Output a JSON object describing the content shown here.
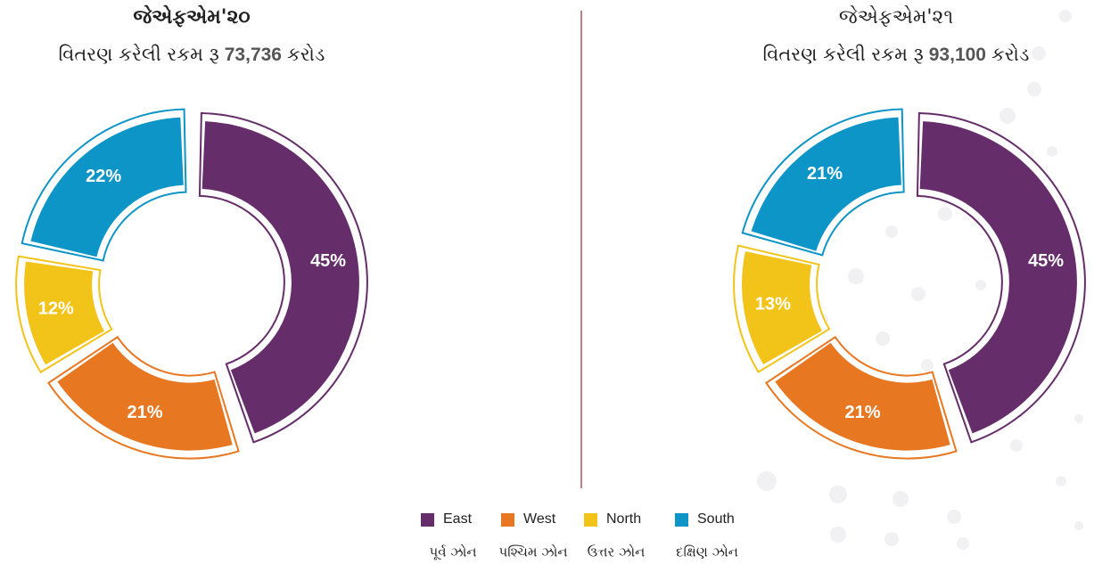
{
  "chart_data": [
    {
      "type": "pie",
      "title": "જેએફએમ'૨૦",
      "subtitle": [
        "વિતરણ કરેલી રકમ રૂ",
        "73,736",
        "કરોડ"
      ],
      "values": [
        45,
        21,
        12,
        22
      ],
      "value_labels": [
        "45%",
        "21%",
        "12%",
        "22%"
      ]
    },
    {
      "type": "pie",
      "title": "જેએફએમ'૨૧",
      "subtitle": [
        "વિતરણ કરેલી રકમ રૂ",
        "93,100",
        "કરોડ"
      ],
      "values": [
        45,
        21,
        13,
        21
      ],
      "value_labels": [
        "45%",
        "21%",
        "13%",
        "21%"
      ]
    }
  ],
  "legend": {
    "categories": [
      "East",
      "West",
      "North",
      "South"
    ],
    "labels": [
      "પૂર્વ ઝોન",
      "પશ્ચિમ ઝોન",
      "ઉત્તર ઝોન",
      "દક્ષિણ ઝોન"
    ],
    "colors": [
      "#662d6b",
      "#e87722",
      "#f2c318",
      "#0e95c8"
    ]
  }
}
